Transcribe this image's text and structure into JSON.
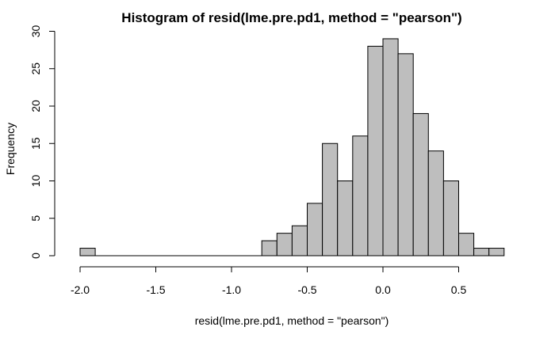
{
  "chart_data": {
    "type": "bar",
    "title": "Histogram of resid(lme.pre.pd1, method = \"pearson\")",
    "xlabel": "resid(lme.pre.pd1, method = \"pearson\")",
    "ylabel": "Frequency",
    "bin_width": 0.1,
    "bins": [
      {
        "x0": -2.0,
        "x1": -1.9,
        "count": 1
      },
      {
        "x0": -1.9,
        "x1": -1.8,
        "count": 0
      },
      {
        "x0": -1.8,
        "x1": -1.7,
        "count": 0
      },
      {
        "x0": -1.7,
        "x1": -1.6,
        "count": 0
      },
      {
        "x0": -1.6,
        "x1": -1.5,
        "count": 0
      },
      {
        "x0": -1.5,
        "x1": -1.4,
        "count": 0
      },
      {
        "x0": -1.4,
        "x1": -1.3,
        "count": 0
      },
      {
        "x0": -1.3,
        "x1": -1.2,
        "count": 0
      },
      {
        "x0": -1.2,
        "x1": -1.1,
        "count": 0
      },
      {
        "x0": -1.1,
        "x1": -1.0,
        "count": 0
      },
      {
        "x0": -1.0,
        "x1": -0.9,
        "count": 0
      },
      {
        "x0": -0.9,
        "x1": -0.8,
        "count": 0
      },
      {
        "x0": -0.8,
        "x1": -0.7,
        "count": 2
      },
      {
        "x0": -0.7,
        "x1": -0.6,
        "count": 3
      },
      {
        "x0": -0.6,
        "x1": -0.5,
        "count": 4
      },
      {
        "x0": -0.5,
        "x1": -0.4,
        "count": 7
      },
      {
        "x0": -0.4,
        "x1": -0.3,
        "count": 15
      },
      {
        "x0": -0.3,
        "x1": -0.2,
        "count": 10
      },
      {
        "x0": -0.2,
        "x1": -0.1,
        "count": 16
      },
      {
        "x0": -0.1,
        "x1": 0.0,
        "count": 28
      },
      {
        "x0": 0.0,
        "x1": 0.1,
        "count": 29
      },
      {
        "x0": 0.1,
        "x1": 0.2,
        "count": 27
      },
      {
        "x0": 0.2,
        "x1": 0.3,
        "count": 19
      },
      {
        "x0": 0.3,
        "x1": 0.4,
        "count": 14
      },
      {
        "x0": 0.4,
        "x1": 0.5,
        "count": 10
      },
      {
        "x0": 0.5,
        "x1": 0.6,
        "count": 3
      },
      {
        "x0": 0.6,
        "x1": 0.7,
        "count": 1
      },
      {
        "x0": 0.7,
        "x1": 0.8,
        "count": 1
      }
    ],
    "xlim": [
      -2.0,
      0.8
    ],
    "ylim": [
      0,
      30
    ],
    "x_ticks": [
      -2.0,
      -1.5,
      -1.0,
      -0.5,
      0.0,
      0.5
    ],
    "x_tick_labels": [
      "-2.0",
      "-1.5",
      "-1.0",
      "-0.5",
      "0.0",
      "0.5"
    ],
    "y_ticks": [
      0,
      5,
      10,
      15,
      20,
      25,
      30
    ],
    "y_tick_labels": [
      "0",
      "5",
      "10",
      "15",
      "20",
      "25",
      "30"
    ],
    "grid": false,
    "colors": {
      "bar_fill": "#bebebe",
      "bar_stroke": "#000000"
    }
  }
}
